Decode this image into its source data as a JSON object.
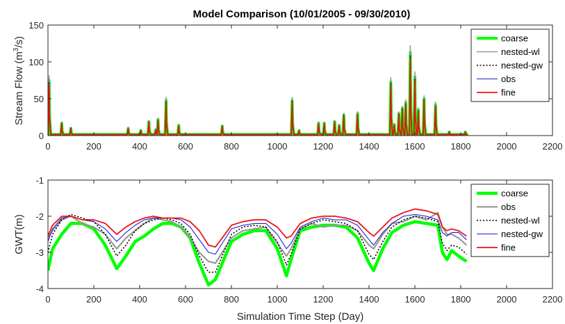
{
  "chart_data": [
    {
      "type": "line",
      "title": "Model Comparison (10/01/2005 - 09/30/2010)",
      "xlabel": "",
      "ylabel": "Stream Flow (m",
      "ylabel_sup": "3",
      "ylabel_tail": "/s)",
      "xlim": [
        0,
        2200
      ],
      "ylim": [
        0,
        150
      ],
      "xticks": [
        0,
        200,
        400,
        600,
        800,
        1000,
        1200,
        1400,
        1600,
        1800,
        2000,
        2200
      ],
      "yticks": [
        0,
        50,
        100,
        150
      ],
      "legend_position": "top-right",
      "peaks": [
        {
          "x": 5,
          "v": 75
        },
        {
          "x": 60,
          "v": 17
        },
        {
          "x": 100,
          "v": 10
        },
        {
          "x": 350,
          "v": 10
        },
        {
          "x": 405,
          "v": 7
        },
        {
          "x": 440,
          "v": 19
        },
        {
          "x": 470,
          "v": 8
        },
        {
          "x": 480,
          "v": 22
        },
        {
          "x": 515,
          "v": 48
        },
        {
          "x": 570,
          "v": 14
        },
        {
          "x": 760,
          "v": 13
        },
        {
          "x": 1065,
          "v": 48
        },
        {
          "x": 1095,
          "v": 7
        },
        {
          "x": 1180,
          "v": 17
        },
        {
          "x": 1205,
          "v": 17
        },
        {
          "x": 1250,
          "v": 19
        },
        {
          "x": 1270,
          "v": 14
        },
        {
          "x": 1290,
          "v": 28
        },
        {
          "x": 1350,
          "v": 30
        },
        {
          "x": 1495,
          "v": 73
        },
        {
          "x": 1510,
          "v": 15
        },
        {
          "x": 1530,
          "v": 30
        },
        {
          "x": 1545,
          "v": 37
        },
        {
          "x": 1560,
          "v": 45
        },
        {
          "x": 1580,
          "v": 113
        },
        {
          "x": 1600,
          "v": 80
        },
        {
          "x": 1615,
          "v": 35
        },
        {
          "x": 1640,
          "v": 50
        },
        {
          "x": 1690,
          "v": 42
        },
        {
          "x": 1750,
          "v": 5
        },
        {
          "x": 1820,
          "v": 5
        }
      ],
      "series": [
        {
          "name": "coarse",
          "color": "#00ff00",
          "peak_factor": 1.0
        },
        {
          "name": "nested-wl",
          "color": "#999999",
          "peak_factor": 1.08
        },
        {
          "name": "nested-gw",
          "color": "#000000",
          "peak_factor": 0.97
        },
        {
          "name": "obs",
          "color": "#1f1fd6",
          "peak_factor": 0.96
        },
        {
          "name": "fine",
          "color": "#ee1111",
          "peak_factor": 0.93
        }
      ]
    },
    {
      "type": "line",
      "title": "",
      "xlabel": "Simulation Time Step (Day)",
      "ylabel": "GWT(m)",
      "xlim": [
        0,
        2200
      ],
      "ylim": [
        -4,
        -1
      ],
      "xticks": [
        0,
        200,
        400,
        600,
        800,
        1000,
        1200,
        1400,
        1600,
        1800,
        2000,
        2200
      ],
      "yticks": [
        -4,
        -3,
        -2,
        -1
      ],
      "legend_position": "top-right",
      "series": [
        {
          "name": "coarse",
          "color": "#00ff00",
          "x": [
            0,
            20,
            60,
            100,
            150,
            200,
            250,
            300,
            340,
            380,
            420,
            460,
            500,
            540,
            580,
            620,
            660,
            700,
            730,
            760,
            800,
            850,
            900,
            950,
            1000,
            1040,
            1060,
            1100,
            1150,
            1200,
            1250,
            1300,
            1350,
            1400,
            1420,
            1460,
            1500,
            1550,
            1600,
            1650,
            1700,
            1720,
            1740,
            1760,
            1790,
            1825
          ],
          "y": [
            -3.5,
            -2.9,
            -2.5,
            -2.2,
            -2.2,
            -2.35,
            -2.8,
            -3.45,
            -3.1,
            -2.7,
            -2.55,
            -2.35,
            -2.2,
            -2.2,
            -2.3,
            -2.6,
            -3.3,
            -3.9,
            -3.75,
            -3.3,
            -2.7,
            -2.5,
            -2.4,
            -2.4,
            -2.9,
            -3.65,
            -3.2,
            -2.4,
            -2.3,
            -2.25,
            -2.25,
            -2.3,
            -2.6,
            -3.3,
            -3.5,
            -2.9,
            -2.45,
            -2.25,
            -2.15,
            -2.2,
            -2.25,
            -3.0,
            -3.2,
            -2.95,
            -3.1,
            -3.25
          ]
        },
        {
          "name": "obs",
          "color": "#999999",
          "x": [
            0,
            20,
            60,
            100,
            150,
            200,
            250,
            300,
            340,
            380,
            420,
            460,
            500,
            540,
            580,
            620,
            660,
            700,
            730,
            760,
            800,
            850,
            900,
            950,
            1000,
            1040,
            1060,
            1100,
            1150,
            1200,
            1250,
            1300,
            1350,
            1400,
            1420,
            1460,
            1500,
            1550,
            1600,
            1650,
            1700,
            1720,
            1740,
            1760,
            1790,
            1825
          ],
          "y": [
            -2.6,
            -2.4,
            -2.1,
            -2.0,
            -2.2,
            -2.3,
            -2.5,
            -2.9,
            -2.6,
            -2.4,
            -2.2,
            -2.05,
            -2.1,
            -2.15,
            -2.3,
            -2.6,
            -3.0,
            -3.25,
            -3.3,
            -3.0,
            -2.6,
            -2.4,
            -2.35,
            -2.3,
            -2.75,
            -3.1,
            -2.9,
            -2.35,
            -2.2,
            -2.3,
            -2.25,
            -2.25,
            -2.4,
            -2.8,
            -2.9,
            -2.5,
            -2.2,
            -2.15,
            -2.0,
            -2.1,
            -1.9,
            -2.3,
            -2.5,
            -2.5,
            -2.6,
            -2.8
          ]
        },
        {
          "name": "nested-wl",
          "color": "#000000",
          "x": [
            0,
            20,
            60,
            100,
            150,
            200,
            250,
            300,
            340,
            380,
            420,
            460,
            500,
            540,
            580,
            620,
            660,
            700,
            730,
            760,
            800,
            850,
            900,
            950,
            1000,
            1040,
            1060,
            1100,
            1150,
            1200,
            1250,
            1300,
            1350,
            1400,
            1420,
            1460,
            1500,
            1550,
            1600,
            1650,
            1700,
            1720,
            1740,
            1760,
            1790,
            1825
          ],
          "y": [
            -3.0,
            -2.5,
            -2.1,
            -1.95,
            -2.05,
            -2.15,
            -2.5,
            -3.1,
            -2.8,
            -2.4,
            -2.2,
            -2.1,
            -2.05,
            -2.1,
            -2.2,
            -2.5,
            -3.1,
            -3.55,
            -3.55,
            -3.1,
            -2.5,
            -2.3,
            -2.25,
            -2.3,
            -2.7,
            -3.35,
            -3.05,
            -2.35,
            -2.2,
            -2.1,
            -2.15,
            -2.2,
            -2.4,
            -3.05,
            -3.2,
            -2.7,
            -2.3,
            -2.1,
            -2.0,
            -2.05,
            -2.15,
            -2.75,
            -2.95,
            -2.8,
            -2.85,
            -3.05
          ]
        },
        {
          "name": "nested-gw",
          "color": "#1f1fd6",
          "x": [
            0,
            20,
            60,
            100,
            150,
            200,
            250,
            300,
            340,
            380,
            420,
            460,
            500,
            540,
            580,
            620,
            660,
            700,
            730,
            760,
            800,
            850,
            900,
            950,
            1000,
            1040,
            1060,
            1100,
            1150,
            1200,
            1250,
            1300,
            1350,
            1400,
            1420,
            1460,
            1500,
            1550,
            1600,
            1650,
            1700,
            1720,
            1740,
            1760,
            1790,
            1825
          ],
          "y": [
            -2.7,
            -2.35,
            -2.05,
            -2.0,
            -2.1,
            -2.15,
            -2.35,
            -2.7,
            -2.45,
            -2.25,
            -2.1,
            -2.05,
            -2.05,
            -2.05,
            -2.1,
            -2.3,
            -2.65,
            -3.0,
            -3.05,
            -2.75,
            -2.35,
            -2.25,
            -2.2,
            -2.2,
            -2.5,
            -2.9,
            -2.75,
            -2.3,
            -2.15,
            -2.05,
            -2.1,
            -2.1,
            -2.25,
            -2.65,
            -2.8,
            -2.45,
            -2.2,
            -2.0,
            -1.95,
            -2.0,
            -2.1,
            -2.45,
            -2.55,
            -2.45,
            -2.45,
            -2.65
          ]
        },
        {
          "name": "fine",
          "color": "#ee1111",
          "x": [
            0,
            20,
            60,
            100,
            150,
            200,
            250,
            300,
            340,
            380,
            420,
            460,
            500,
            540,
            580,
            620,
            660,
            700,
            730,
            760,
            800,
            850,
            900,
            950,
            1000,
            1040,
            1060,
            1100,
            1150,
            1200,
            1250,
            1300,
            1350,
            1400,
            1420,
            1460,
            1500,
            1550,
            1600,
            1650,
            1700,
            1720,
            1740,
            1760,
            1790,
            1825
          ],
          "y": [
            -2.55,
            -2.25,
            -2.0,
            -2.0,
            -2.1,
            -2.1,
            -2.2,
            -2.5,
            -2.3,
            -2.15,
            -2.05,
            -2.0,
            -2.05,
            -2.05,
            -2.05,
            -2.15,
            -2.4,
            -2.8,
            -2.85,
            -2.6,
            -2.25,
            -2.15,
            -2.1,
            -2.1,
            -2.3,
            -2.6,
            -2.55,
            -2.2,
            -2.05,
            -2.0,
            -2.0,
            -2.05,
            -2.15,
            -2.45,
            -2.55,
            -2.3,
            -2.05,
            -1.9,
            -1.8,
            -1.85,
            -1.95,
            -2.3,
            -2.4,
            -2.35,
            -2.4,
            -2.55
          ]
        }
      ]
    }
  ]
}
